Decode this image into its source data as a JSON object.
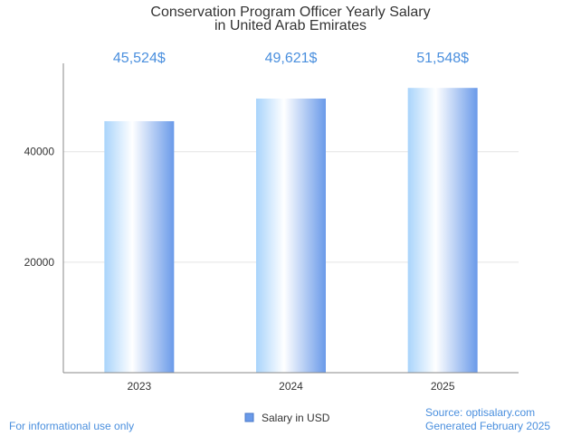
{
  "chart_data": {
    "type": "bar",
    "title_lines": [
      "Conservation Program Officer Yearly Salary",
      "in United Arab Emirates"
    ],
    "categories": [
      "2023",
      "2024",
      "2025"
    ],
    "values": [
      45524,
      49621,
      51548
    ],
    "value_labels": [
      "45,524$",
      "49,621$",
      "51,548$"
    ],
    "series": [
      {
        "name": "Salary in USD",
        "values": [
          45524,
          49621,
          51548
        ]
      }
    ],
    "y_ticks": [
      20000,
      40000
    ],
    "ylim": [
      0,
      56000
    ],
    "grid": true,
    "legend_position": "bottom"
  },
  "colors": {
    "bar_light": "#ffffff",
    "bar_mid": "#a9d4fb",
    "bar_dark": "#6a9ae9",
    "value_label": "#4a8fde",
    "footer": "#4a8fde",
    "legend_swatch": "#6a9ae9"
  },
  "footer": {
    "left": "For informational use only",
    "source": "Source: optisalary.com",
    "generated": "Generated February 2025"
  }
}
